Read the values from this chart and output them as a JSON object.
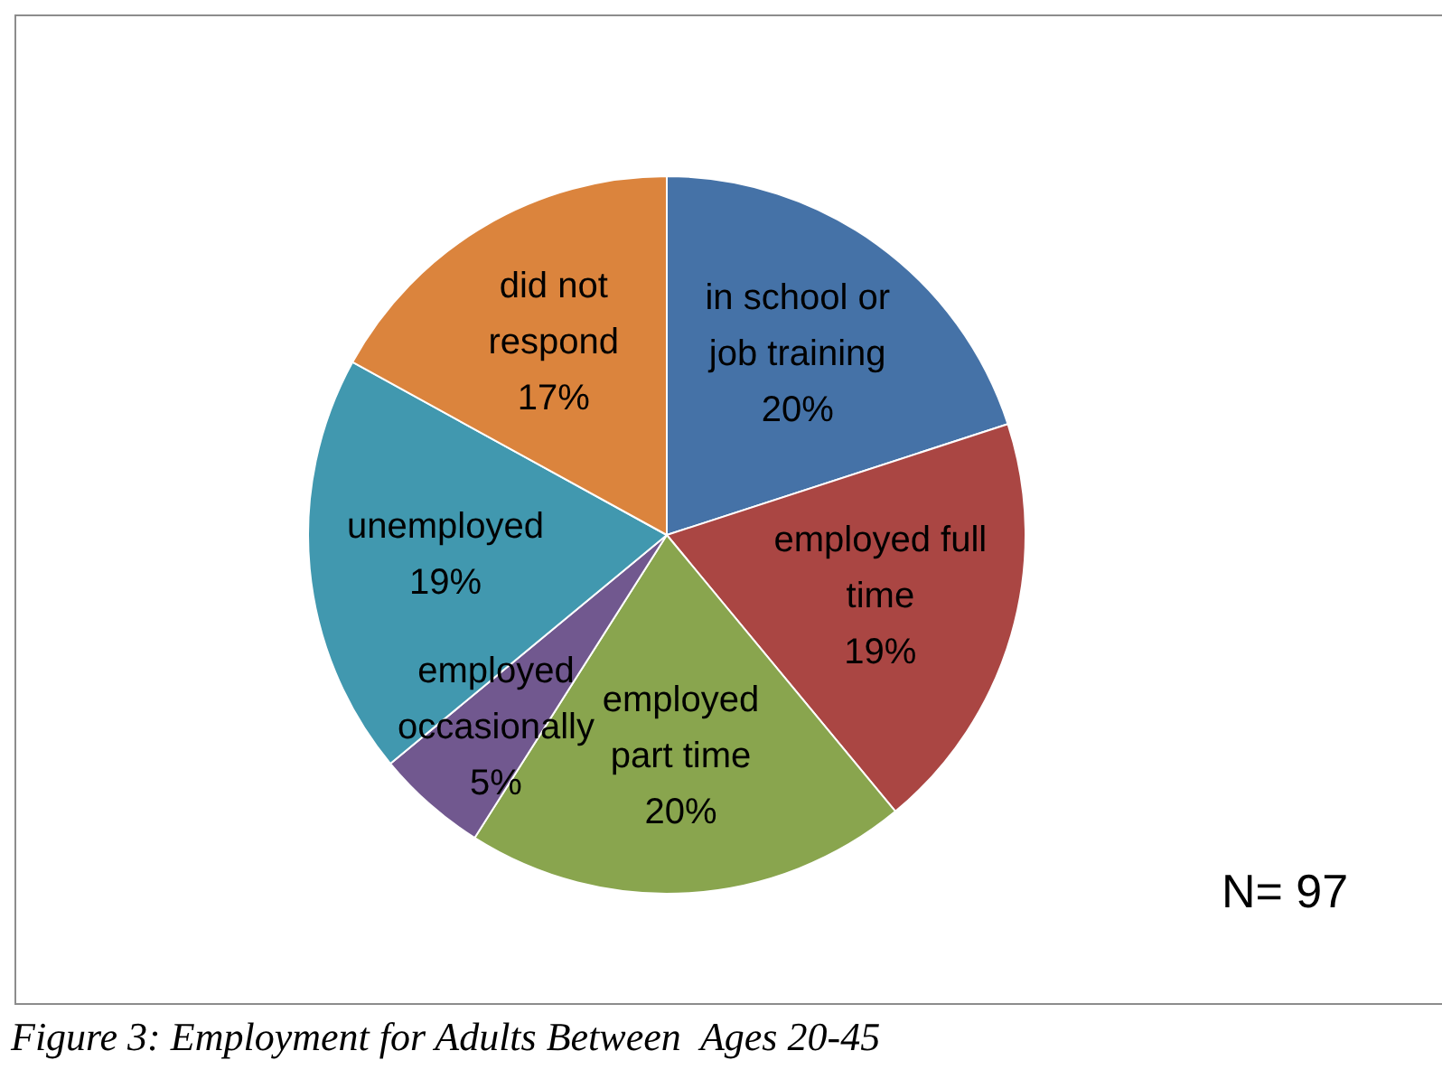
{
  "chart_data": {
    "type": "pie",
    "categories": [
      "in school or job training",
      "employed full time",
      "employed part time",
      "employed occasionally",
      "unemployed",
      "did not respond"
    ],
    "values": [
      20,
      19,
      20,
      5,
      19,
      17
    ],
    "colors": [
      "#4572a7",
      "#aa4643",
      "#89a54e",
      "#71588f",
      "#4198af",
      "#db843d"
    ],
    "value_labels": [
      "20%",
      "19%",
      "20%",
      "5%",
      "19%",
      "17%"
    ],
    "legend": false,
    "annotations": [
      "N= 97",
      "Figure 3: Employment for Adults Between  Ages 20-45"
    ]
  }
}
